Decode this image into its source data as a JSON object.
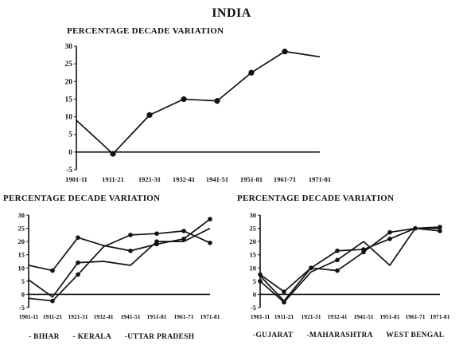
{
  "page_title": "INDIA",
  "chart_data": [
    {
      "id": "india",
      "type": "line",
      "title": "PERCENTAGE DECADE VARIATION",
      "categories": [
        "1901-11",
        "1911-21",
        "1921-31",
        "1932-41",
        "1941-51",
        "1951-81",
        "1961-71",
        "1971-81"
      ],
      "series": [
        {
          "values": [
            9,
            -0.5,
            10.5,
            15,
            14.5,
            22.5,
            28.5,
            27
          ],
          "markers": [
            false,
            true,
            true,
            true,
            true,
            true,
            true,
            false
          ]
        }
      ],
      "ylim": [
        -5,
        30
      ],
      "yticks": [
        -5,
        0,
        5,
        10,
        15,
        20,
        25,
        30
      ],
      "grid": false
    },
    {
      "id": "north",
      "type": "line",
      "title": "PERCENTAGE DECADE VARIATION",
      "categories": [
        "1901-11",
        "1911-21",
        "1921-31",
        "1932-41",
        "1941-51",
        "1951-81",
        "1961-71",
        "1971-81"
      ],
      "series": [
        {
          "name": "BIHAR",
          "values": [
            11,
            9,
            21.5,
            18.5,
            16.5,
            19,
            21,
            28.5
          ],
          "markers": [
            false,
            true,
            true,
            false,
            true,
            true,
            true,
            true
          ]
        },
        {
          "name": "KERALA",
          "values": [
            -1.5,
            -2.5,
            7.5,
            18,
            22.5,
            23,
            24,
            19.5
          ],
          "markers": [
            false,
            true,
            true,
            false,
            true,
            true,
            true,
            true
          ]
        },
        {
          "name": "UTTAR PRADESH",
          "values": [
            5.5,
            -1,
            12,
            12.5,
            11,
            20,
            20,
            25
          ],
          "markers": [
            false,
            false,
            true,
            false,
            false,
            true,
            false,
            false
          ]
        }
      ],
      "legend": [
        "- BIHAR",
        "- KERALA",
        "-UTTAR PRADESH"
      ],
      "ylim": [
        -5,
        30
      ],
      "yticks": [
        -5,
        0,
        5,
        10,
        15,
        20,
        25,
        30
      ],
      "grid": false
    },
    {
      "id": "west",
      "type": "line",
      "title": "PERCENTAGE DECADE VARIATION",
      "categories": [
        "1901-11",
        "1911-21",
        "1921-31",
        "1932-41",
        "1941-51",
        "1951-81",
        "1961-71",
        "1971-81"
      ],
      "series": [
        {
          "name": "GUJARAT",
          "values": [
            7.5,
            1,
            10,
            16.5,
            17,
            21,
            25,
            25.5
          ],
          "markers": [
            true,
            true,
            true,
            true,
            true,
            true,
            true,
            true
          ]
        },
        {
          "name": "MAHARASHTRA",
          "values": [
            5,
            -3,
            8.5,
            13,
            20,
            11,
            25,
            25
          ],
          "markers": [
            true,
            true,
            false,
            true,
            false,
            false,
            false,
            false
          ]
        },
        {
          "name": "WEST BENGAL",
          "values": [
            7,
            -2.5,
            10,
            9,
            16,
            23.5,
            25,
            24
          ],
          "markers": [
            false,
            false,
            true,
            true,
            true,
            true,
            true,
            true
          ]
        }
      ],
      "legend": [
        "-GUJARAT",
        "-MAHARASHTRA",
        "WEST BENGAL"
      ],
      "ylim": [
        -5,
        30
      ],
      "yticks": [
        -5,
        0,
        5,
        10,
        15,
        20,
        25,
        30
      ],
      "grid": false
    }
  ]
}
